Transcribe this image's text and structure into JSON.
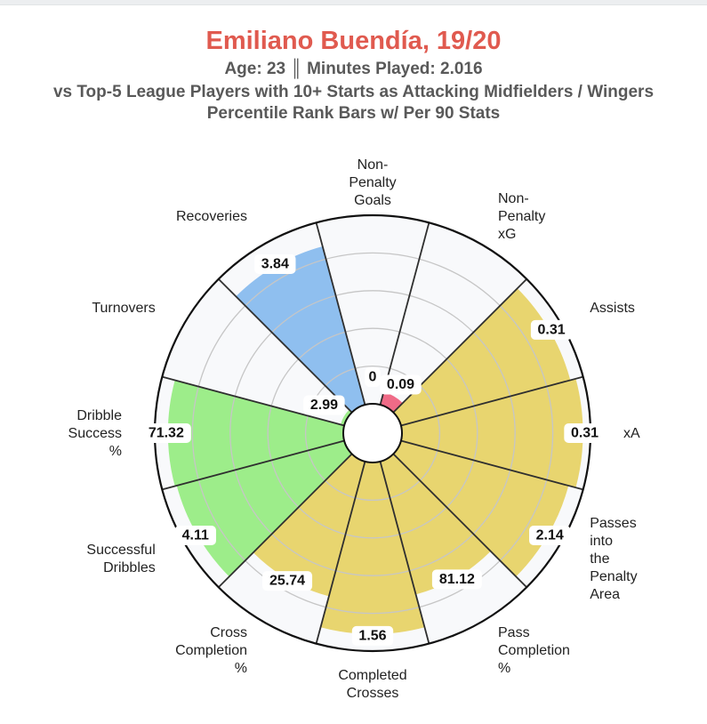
{
  "header": {
    "title": "Emiliano Buendía, 19/20",
    "subtitle_1": "Age: 23 ║ Minutes Played: 2.016",
    "subtitle_2": "vs Top-5 League Players with 10+ Starts as Attacking Midfielders / Wingers",
    "subtitle_3": "Percentile Rank Bars w/ Per 90 Stats"
  },
  "chart_data": {
    "type": "radial-bar",
    "value_scale": "percentile",
    "range": [
      0,
      100
    ],
    "grid": true,
    "gridlines": [
      20,
      40,
      60,
      80
    ],
    "colors": {
      "attacking": "#e8d56f",
      "possession": "#9ded8a",
      "defending": "#8fbfef",
      "scoring": "#ef6b87",
      "background": "#f8f9fb",
      "rings": "#c6c6c6",
      "dividers": "#2f2f2f"
    },
    "bars": [
      {
        "label": [
          "Non-",
          "Penalty",
          "Goals"
        ],
        "value_label": "0",
        "percentile": 0,
        "group": "scoring"
      },
      {
        "label": [
          "Non-",
          "Penalty",
          "xG"
        ],
        "value_label": "0.09",
        "percentile": 7,
        "group": "scoring"
      },
      {
        "label": [
          "Assists"
        ],
        "value_label": "0.31",
        "percentile": 93,
        "group": "attacking"
      },
      {
        "label": [
          "xA"
        ],
        "value_label": "0.31",
        "percentile": 96,
        "group": "attacking"
      },
      {
        "label": [
          "Passes",
          "into",
          "the",
          "Penalty",
          "Area"
        ],
        "value_label": "2.14",
        "percentile": 92,
        "group": "attacking"
      },
      {
        "label": [
          "Pass",
          "Completion",
          "%"
        ],
        "value_label": "81.12",
        "percentile": 73,
        "group": "attacking"
      },
      {
        "label": [
          "Completed",
          "Crosses"
        ],
        "value_label": "1.56",
        "percentile": 91,
        "group": "attacking"
      },
      {
        "label": [
          "Cross",
          "Completion",
          "%"
        ],
        "value_label": "25.74",
        "percentile": 74,
        "group": "attacking"
      },
      {
        "label": [
          "Successful",
          "Dribbles"
        ],
        "value_label": "4.11",
        "percentile": 92,
        "group": "possession"
      },
      {
        "label": [
          "Dribble",
          "Success",
          "%"
        ],
        "value_label": "71.32",
        "percentile": 93,
        "group": "possession"
      },
      {
        "label": [
          "Turnovers"
        ],
        "value_label": "2.99",
        "percentile": 2,
        "group": "possession"
      },
      {
        "label": [
          "Recoveries"
        ],
        "value_label": "3.84",
        "percentile": 87,
        "group": "defending"
      }
    ]
  }
}
